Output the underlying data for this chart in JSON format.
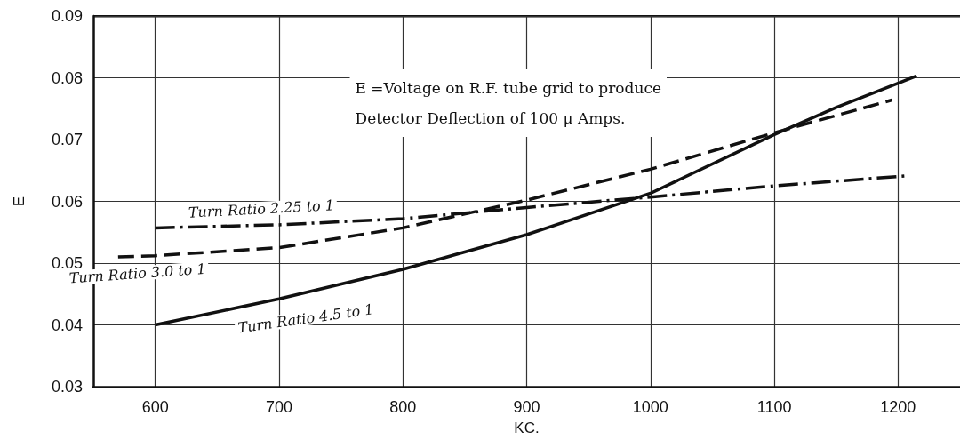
{
  "chart_data": {
    "type": "line",
    "xlabel": "KC.",
    "ylabel": "E",
    "annotations": [
      "E =Voltage on R.F. tube grid to produce\nDetector Deflection of 100 μ Amps."
    ],
    "series": [
      {
        "name": "Turn Ratio 2.25 to 1",
        "color": "#111111",
        "line_style": "dashdot",
        "x": [
          600,
          700,
          800,
          900,
          1000,
          1100,
          1205
        ],
        "values": [
          0.0557,
          0.0562,
          0.0572,
          0.059,
          0.0607,
          0.0625,
          0.0641
        ]
      },
      {
        "name": "Turn Ratio 3.0 to 1",
        "color": "#111111",
        "line_style": "dashed",
        "x": [
          570,
          600,
          700,
          800,
          900,
          1000,
          1100,
          1195
        ],
        "values": [
          0.051,
          0.0512,
          0.0525,
          0.0557,
          0.0602,
          0.0652,
          0.0711,
          0.0764
        ]
      },
      {
        "name": "Turn Ratio 4.5 to 1",
        "color": "#111111",
        "line_style": "solid",
        "x": [
          600,
          700,
          800,
          900,
          1000,
          1100,
          1150,
          1215
        ],
        "values": [
          0.04,
          0.0442,
          0.049,
          0.0546,
          0.0613,
          0.0708,
          0.0752,
          0.0803
        ]
      }
    ],
    "xlim": [
      550,
      1250
    ],
    "xticks": [
      600,
      700,
      800,
      900,
      1000,
      1100,
      1200
    ],
    "ylim": [
      0.03,
      0.09
    ],
    "yticks": [
      0.03,
      0.04,
      0.05,
      0.06,
      0.07,
      0.08,
      0.09
    ],
    "grid": true,
    "legend": false,
    "marker": "none"
  }
}
